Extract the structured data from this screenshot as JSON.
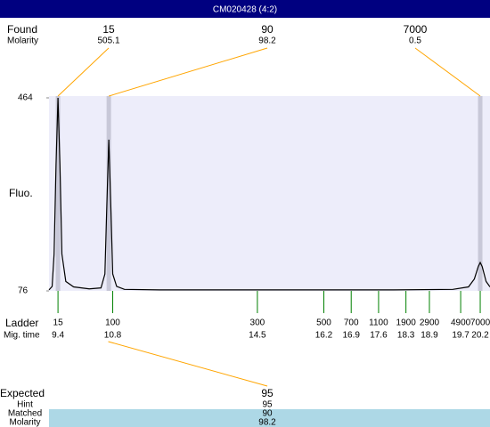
{
  "header": {
    "title": "CM020428 (4:2)"
  },
  "found": {
    "label": "Found",
    "sublabel": "Molarity",
    "peaks": [
      {
        "size": 15,
        "molarity": 505.1,
        "mig_time": 9.4
      },
      {
        "size": 90,
        "molarity": 98.2,
        "mig_time": 10.7
      },
      {
        "size": 7000,
        "molarity": 0.5,
        "mig_time": 20.2
      }
    ]
  },
  "chart_data": {
    "type": "line",
    "ylabel": "Fluo.",
    "color": "#000000",
    "xlim": [
      9.17,
      20.45
    ],
    "ylim": [
      76,
      464
    ],
    "yticks": [
      76,
      464
    ],
    "x": [
      9.17,
      9.25,
      9.3,
      9.35,
      9.4,
      9.45,
      9.5,
      9.6,
      9.8,
      10.2,
      10.5,
      10.6,
      10.65,
      10.7,
      10.75,
      10.8,
      10.9,
      11.1,
      12,
      14,
      16,
      18,
      19.5,
      19.9,
      20.05,
      20.15,
      20.2,
      20.25,
      20.35,
      20.45
    ],
    "values": [
      78,
      85,
      150,
      330,
      464,
      330,
      150,
      95,
      84,
      80,
      82,
      110,
      250,
      380,
      250,
      110,
      85,
      79,
      78,
      78,
      78,
      78,
      79,
      84,
      100,
      125,
      133,
      125,
      95,
      84
    ]
  },
  "ladder": {
    "label": "Ladder",
    "sublabel": "Mig. time",
    "sizes": [
      15,
      100,
      300,
      500,
      700,
      1100,
      1900,
      2900,
      4900,
      7000
    ],
    "times": [
      9.4,
      10.8,
      14.5,
      16.2,
      16.9,
      17.6,
      18.3,
      18.9,
      19.7,
      20.2
    ]
  },
  "expected": {
    "label": "Expected",
    "value": 95,
    "rows": [
      {
        "label": "Hint",
        "value": 95
      },
      {
        "label": "Matched",
        "value": 90
      },
      {
        "label": "Molarity",
        "value": 98.2
      }
    ]
  }
}
